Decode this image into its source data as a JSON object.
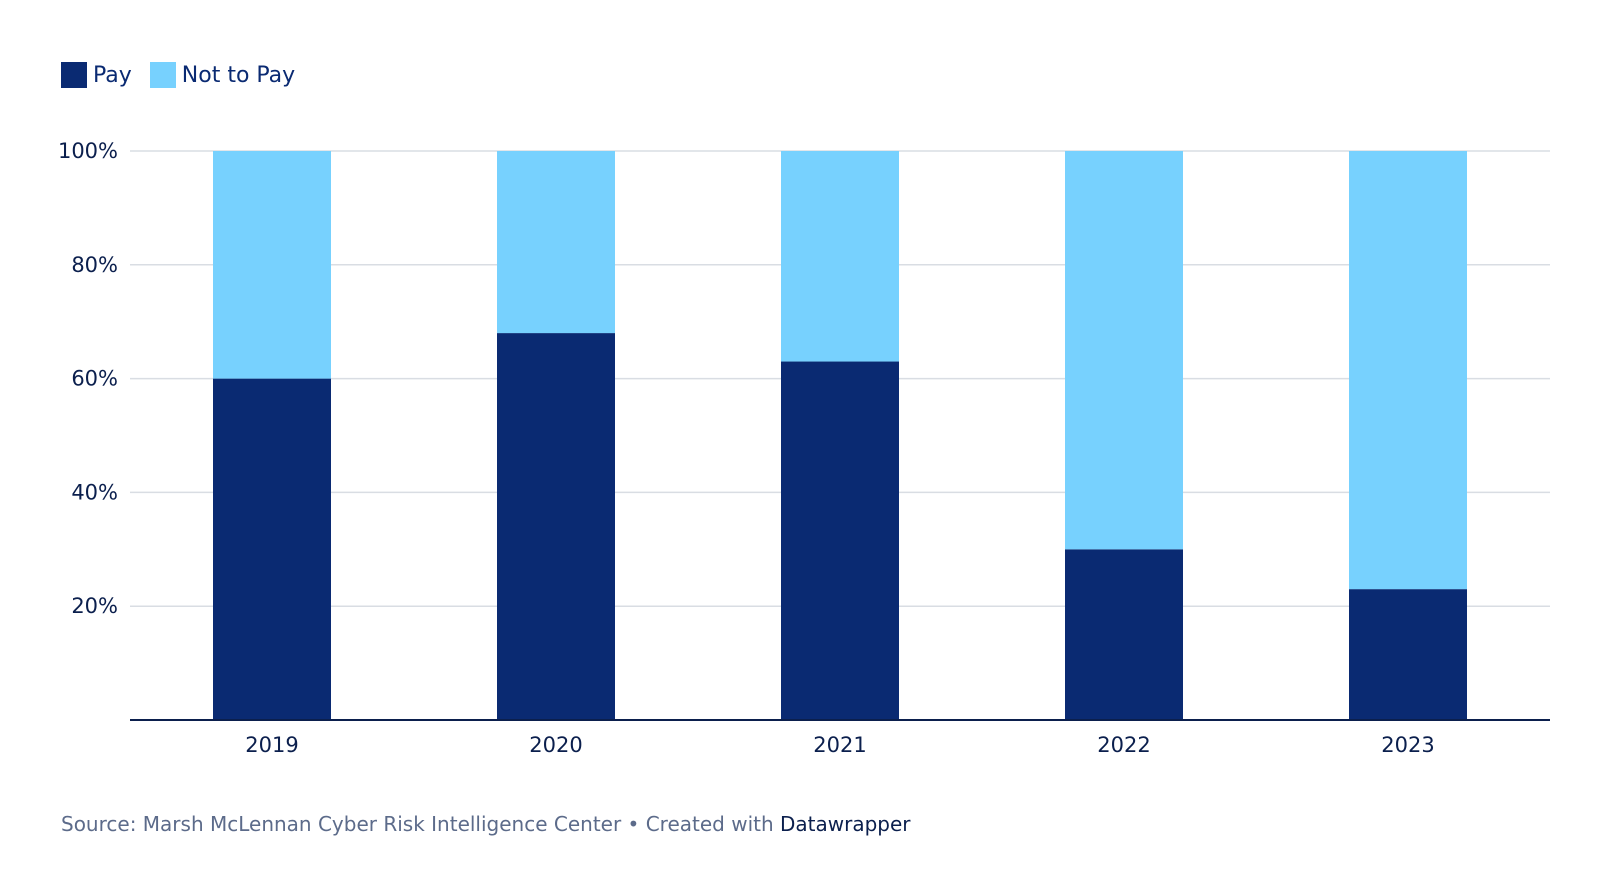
{
  "legend": [
    {
      "label": "Pay",
      "color": "#0a2a72"
    },
    {
      "label": "Not to Pay",
      "color": "#77d1fe"
    }
  ],
  "footer": {
    "source_text": "Source: Marsh McLennan Cyber Risk Intelligence Center • Created with ",
    "brand": "Datawrapper"
  },
  "chart_data": {
    "type": "bar",
    "stacked": true,
    "categories": [
      "2019",
      "2020",
      "2021",
      "2022",
      "2023"
    ],
    "series": [
      {
        "name": "Pay",
        "color": "#0a2a72",
        "values": [
          60,
          68,
          63,
          30,
          23
        ]
      },
      {
        "name": "Not to Pay",
        "color": "#77d1fe",
        "values": [
          40,
          32,
          37,
          70,
          77
        ]
      }
    ],
    "yticks": [
      "20%",
      "40%",
      "60%",
      "80%",
      "100%"
    ],
    "ylim": [
      0,
      100
    ],
    "grid": true,
    "legend_position": "top-left",
    "title": "",
    "xlabel": "",
    "ylabel": ""
  }
}
